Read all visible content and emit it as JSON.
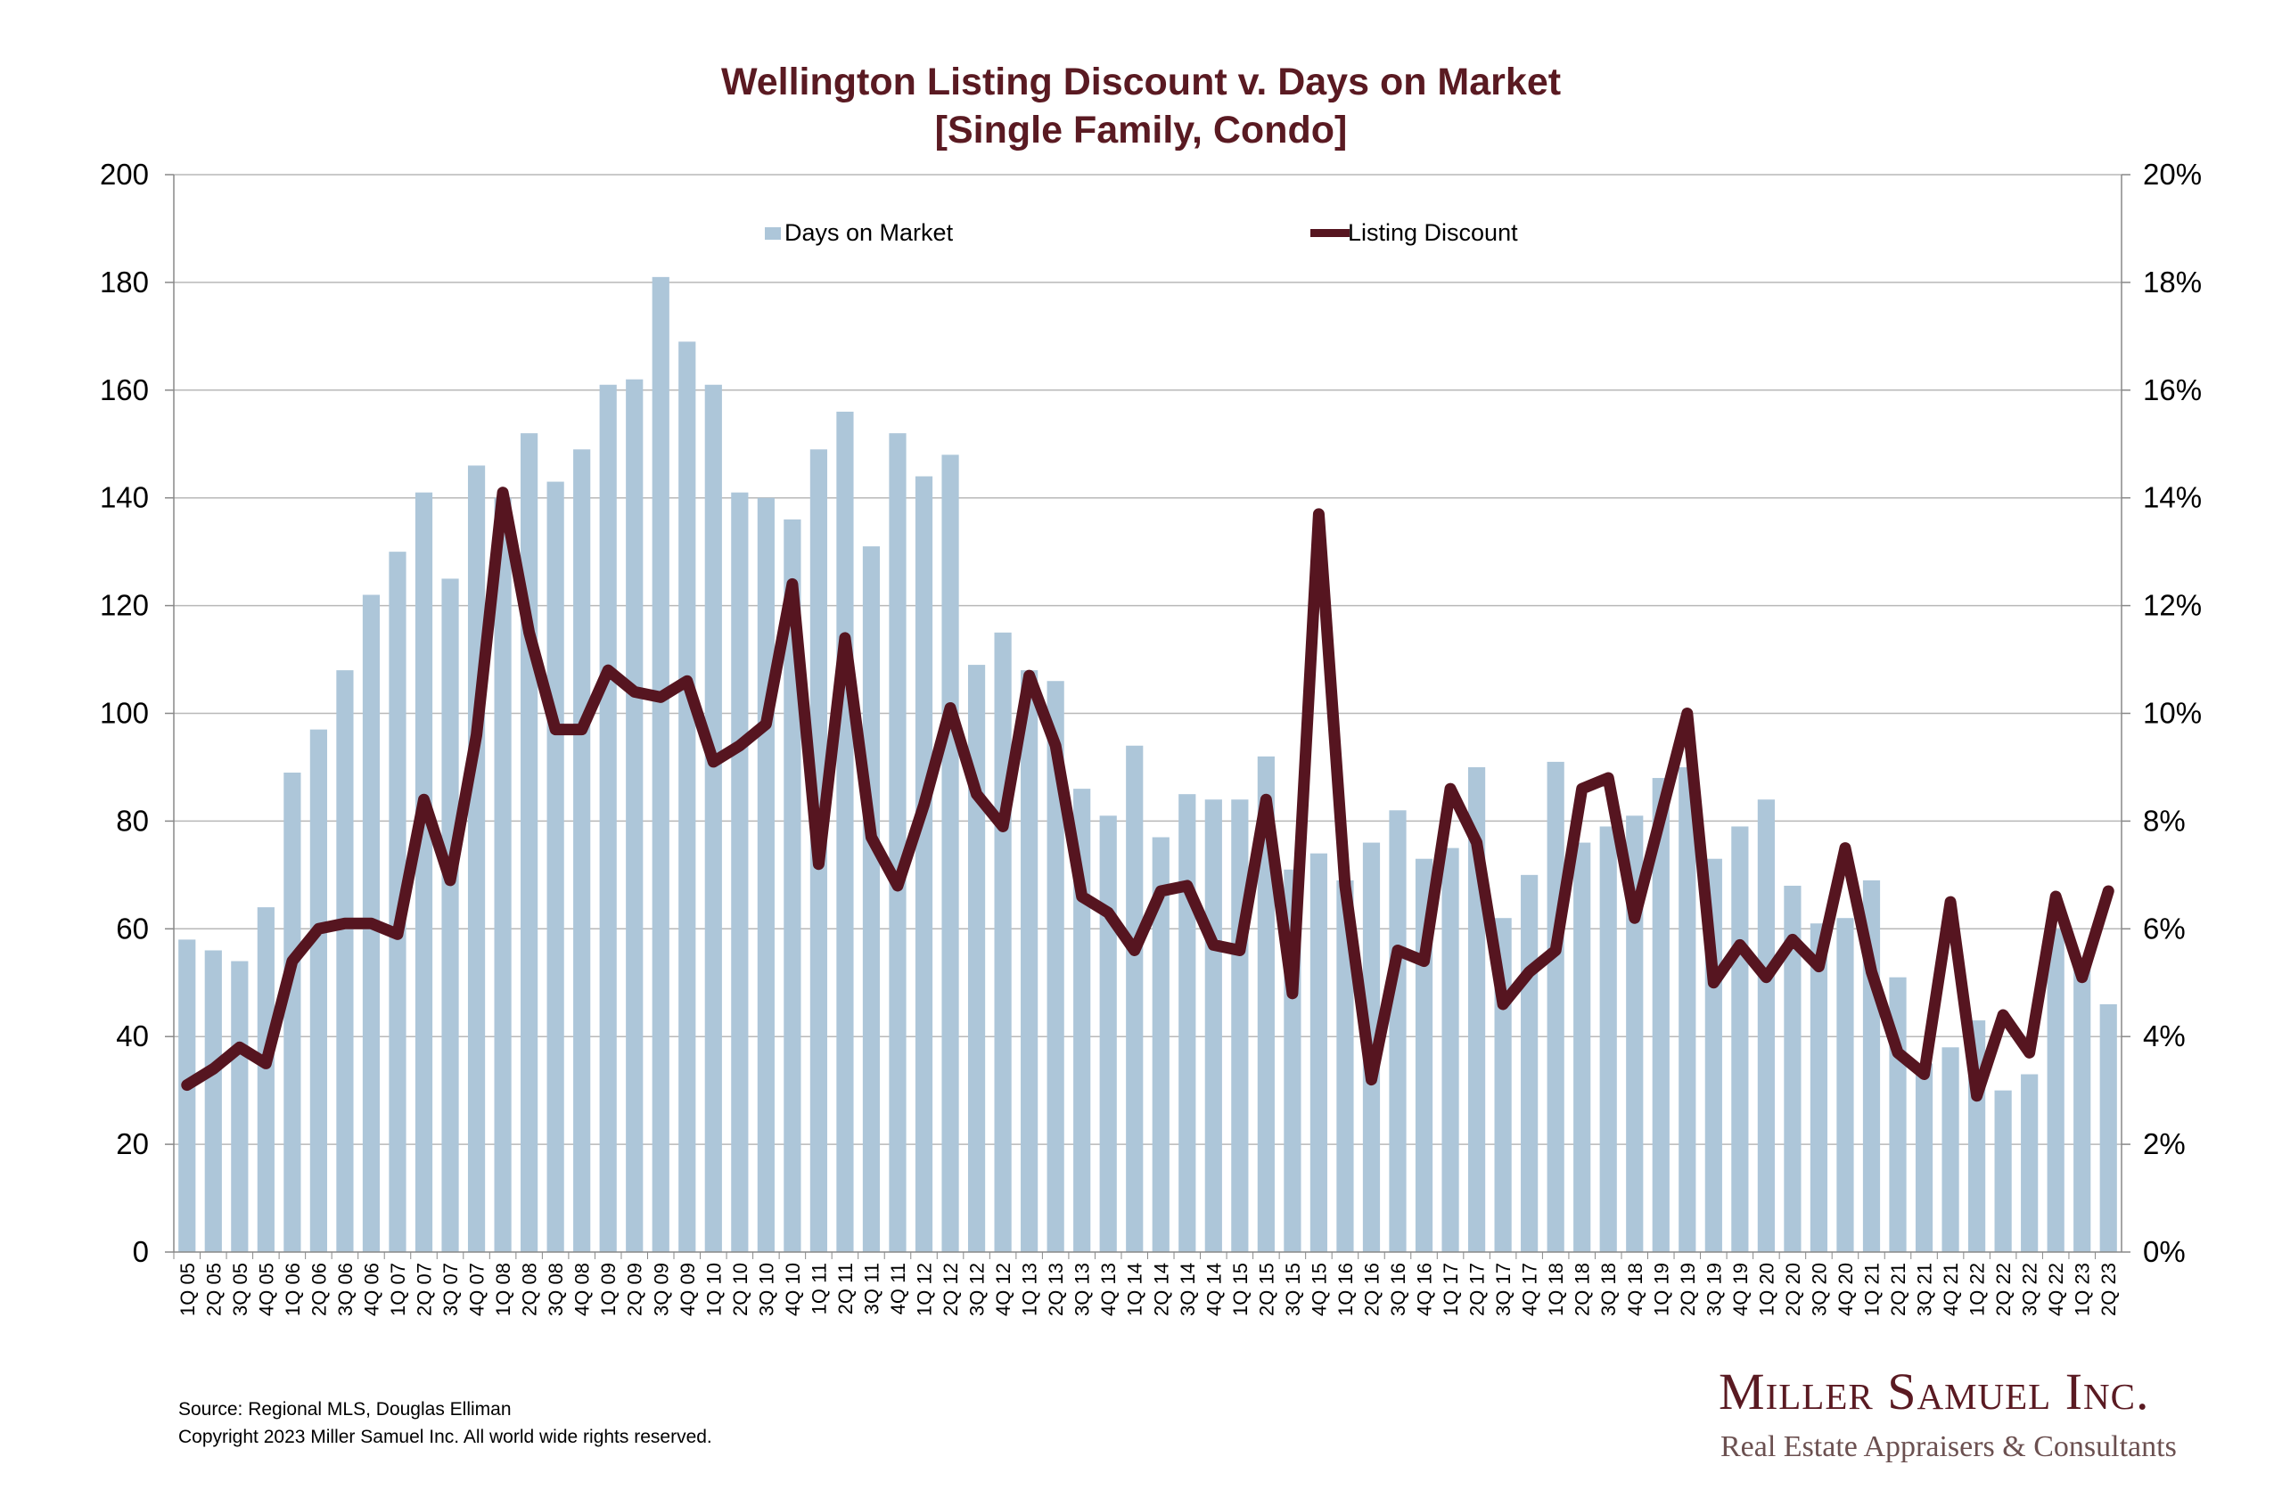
{
  "colors": {
    "bar": "#adc6d9",
    "line": "#561520",
    "title": "#5a1a22",
    "grid": "#b8b8b8",
    "axis": "#888888"
  },
  "footer": {
    "source": "Source: Regional MLS, Douglas Elliman",
    "copyright": "Copyright 2023 Miller Samuel Inc.  All world wide rights reserved."
  },
  "brand": {
    "name": "Miller Samuel Inc.",
    "tagline": "Real Estate Appraisers & Consultants"
  },
  "chart_data": {
    "type": "bar",
    "title": "Wellington Listing Discount v. Days on Market",
    "subtitle": "[Single Family, Condo]",
    "categories": [
      "1Q 05",
      "2Q 05",
      "3Q 05",
      "4Q 05",
      "1Q 06",
      "2Q 06",
      "3Q 06",
      "4Q 06",
      "1Q 07",
      "2Q 07",
      "3Q 07",
      "4Q 07",
      "1Q 08",
      "2Q 08",
      "3Q 08",
      "4Q 08",
      "1Q 09",
      "2Q 09",
      "3Q 09",
      "4Q 09",
      "1Q 10",
      "2Q 10",
      "3Q 10",
      "4Q 10",
      "1Q 11",
      "2Q 11",
      "3Q 11",
      "4Q 11",
      "1Q 12",
      "2Q 12",
      "3Q 12",
      "4Q 12",
      "1Q 13",
      "2Q 13",
      "3Q 13",
      "4Q 13",
      "1Q 14",
      "2Q 14",
      "3Q 14",
      "4Q 14",
      "1Q 15",
      "2Q 15",
      "3Q 15",
      "4Q 15",
      "1Q 16",
      "2Q 16",
      "3Q 16",
      "4Q 16",
      "1Q 17",
      "2Q 17",
      "3Q 17",
      "4Q 17",
      "1Q 18",
      "2Q 18",
      "3Q 18",
      "4Q 18",
      "1Q 19",
      "2Q 19",
      "3Q 19",
      "4Q 19",
      "1Q 20",
      "2Q 20",
      "3Q 20",
      "4Q 20",
      "1Q 21",
      "2Q 21",
      "3Q 21",
      "4Q 21",
      "1Q 22",
      "2Q 22",
      "3Q 22",
      "4Q 22",
      "1Q 23",
      "2Q 23"
    ],
    "series": [
      {
        "name": "Days on Market",
        "type": "bar",
        "axis": "left",
        "values": [
          58,
          56,
          54,
          64,
          89,
          97,
          108,
          122,
          130,
          141,
          125,
          146,
          140,
          152,
          143,
          149,
          161,
          162,
          181,
          169,
          161,
          141,
          140,
          136,
          149,
          156,
          131,
          152,
          144,
          148,
          109,
          115,
          108,
          106,
          86,
          81,
          94,
          77,
          85,
          84,
          84,
          92,
          71,
          74,
          69,
          76,
          82,
          73,
          75,
          90,
          62,
          70,
          91,
          76,
          79,
          81,
          88,
          90,
          73,
          79,
          84,
          68,
          61,
          62,
          69,
          51,
          35,
          38,
          43,
          30,
          33,
          60,
          54,
          46
        ]
      },
      {
        "name": "Listing Discount",
        "type": "line",
        "axis": "right",
        "values": [
          3.1,
          3.4,
          3.8,
          3.5,
          5.4,
          6.0,
          6.1,
          6.1,
          5.9,
          8.4,
          6.9,
          9.6,
          14.1,
          11.5,
          9.7,
          9.7,
          10.8,
          10.4,
          10.3,
          10.6,
          9.1,
          9.4,
          9.8,
          12.4,
          7.2,
          11.4,
          7.7,
          6.8,
          8.3,
          10.1,
          8.5,
          7.9,
          10.7,
          9.4,
          6.6,
          6.3,
          5.6,
          6.7,
          6.8,
          5.7,
          5.6,
          8.4,
          4.8,
          13.7,
          6.8,
          3.2,
          5.6,
          5.4,
          8.6,
          7.6,
          4.6,
          5.2,
          5.6,
          8.6,
          8.8,
          6.2,
          8.1,
          10.0,
          5.0,
          5.7,
          5.1,
          5.8,
          5.3,
          7.5,
          5.2,
          3.7,
          3.3,
          6.5,
          2.9,
          4.4,
          3.7,
          6.6,
          5.1,
          6.7
        ]
      }
    ],
    "y_left": {
      "min": 0,
      "max": 200,
      "step": 20,
      "ticks": [
        "0",
        "20",
        "40",
        "60",
        "80",
        "100",
        "120",
        "140",
        "160",
        "180",
        "200"
      ]
    },
    "y_right": {
      "min": 0,
      "max": 20,
      "step": 2,
      "ticks": [
        "0%",
        "2%",
        "4%",
        "6%",
        "8%",
        "10%",
        "12%",
        "14%",
        "16%",
        "18%",
        "20%"
      ]
    },
    "grid": true,
    "legend": "top-center"
  }
}
